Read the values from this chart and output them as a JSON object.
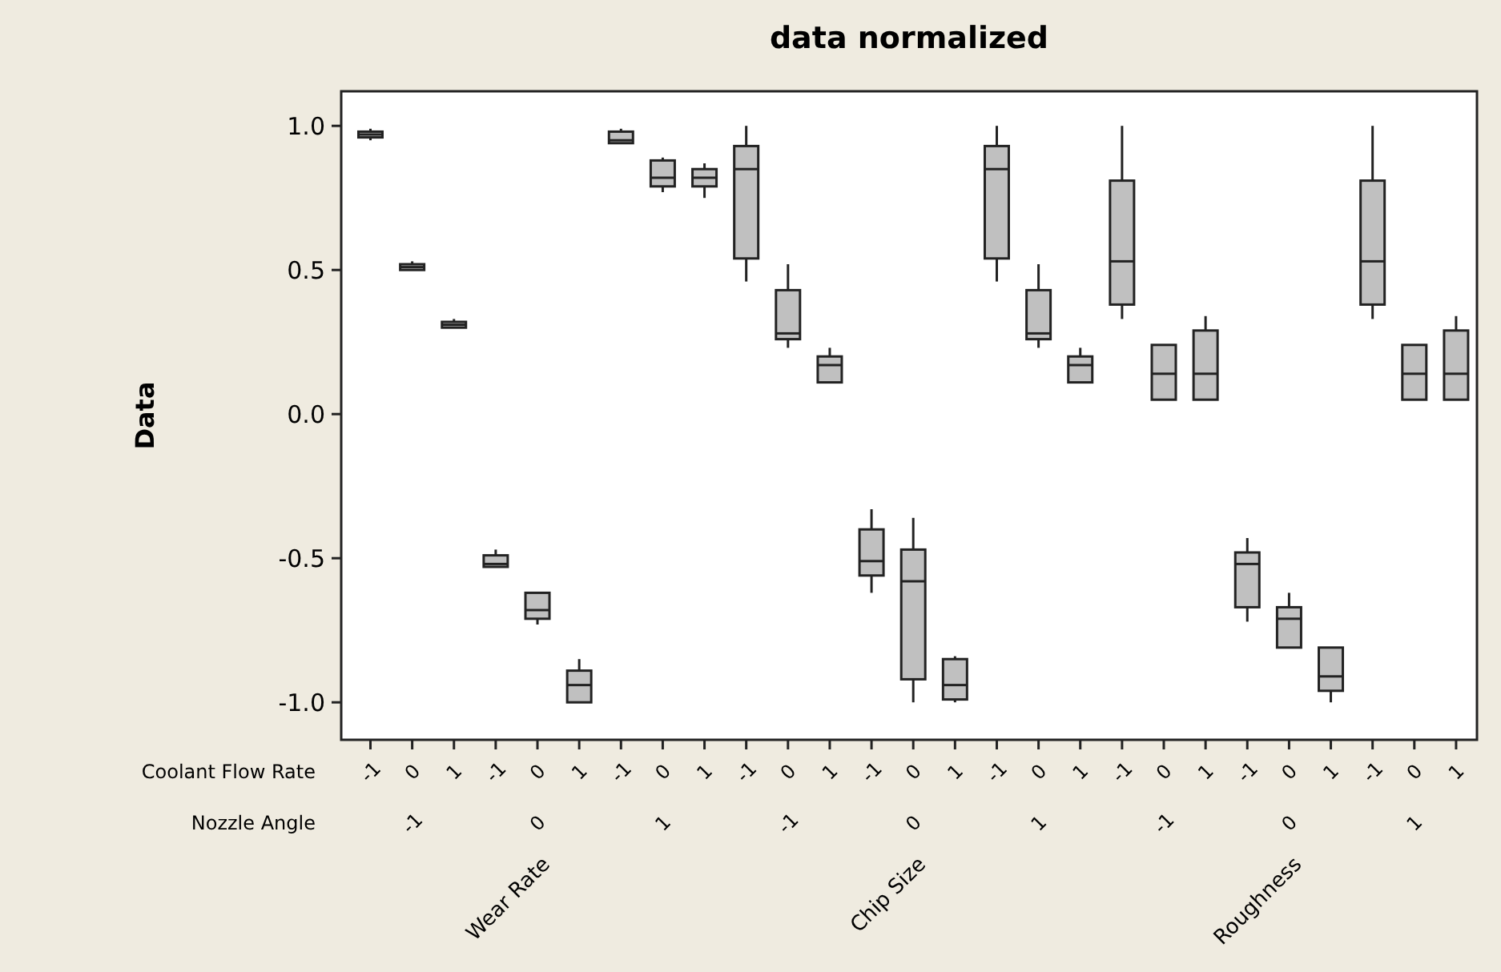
{
  "chart_data": {
    "type": "box",
    "title": "data normalized",
    "ylabel": "Data",
    "categories": [
      "-1",
      "0",
      "1",
      "-1",
      "0",
      "1",
      "-1",
      "0",
      "1",
      "-1",
      "0",
      "1",
      "-1",
      "0",
      "1",
      "-1",
      "0",
      "1",
      "-1",
      "0",
      "1",
      "-1",
      "0",
      "1",
      "-1",
      "0",
      "1"
    ],
    "color": "#c0c0c0",
    "boxes": [
      {
        "low": 0.95,
        "q1": 0.96,
        "median": 0.97,
        "q3": 0.98,
        "high": 0.99
      },
      {
        "low": 0.5,
        "q1": 0.5,
        "median": 0.51,
        "q3": 0.52,
        "high": 0.53
      },
      {
        "low": 0.3,
        "q1": 0.3,
        "median": 0.31,
        "q3": 0.32,
        "high": 0.33
      },
      {
        "low": -0.53,
        "q1": -0.53,
        "median": -0.52,
        "q3": -0.49,
        "high": -0.47
      },
      {
        "low": -0.73,
        "q1": -0.71,
        "median": -0.68,
        "q3": -0.62,
        "high": -0.62
      },
      {
        "low": -1.0,
        "q1": -1.0,
        "median": -0.94,
        "q3": -0.89,
        "high": -0.85
      },
      {
        "low": 0.94,
        "q1": 0.94,
        "median": 0.95,
        "q3": 0.98,
        "high": 0.99
      },
      {
        "low": 0.77,
        "q1": 0.79,
        "median": 0.82,
        "q3": 0.88,
        "high": 0.89
      },
      {
        "low": 0.75,
        "q1": 0.79,
        "median": 0.82,
        "q3": 0.85,
        "high": 0.87
      },
      {
        "low": 0.46,
        "q1": 0.54,
        "median": 0.85,
        "q3": 0.93,
        "high": 1.0
      },
      {
        "low": 0.23,
        "q1": 0.26,
        "median": 0.28,
        "q3": 0.43,
        "high": 0.52
      },
      {
        "low": 0.11,
        "q1": 0.11,
        "median": 0.17,
        "q3": 0.2,
        "high": 0.23
      },
      {
        "low": -0.62,
        "q1": -0.56,
        "median": -0.51,
        "q3": -0.4,
        "high": -0.33
      },
      {
        "low": -1.0,
        "q1": -0.92,
        "median": -0.58,
        "q3": -0.47,
        "high": -0.36
      },
      {
        "low": -1.0,
        "q1": -0.99,
        "median": -0.94,
        "q3": -0.85,
        "high": -0.84
      },
      {
        "low": 0.46,
        "q1": 0.54,
        "median": 0.85,
        "q3": 0.93,
        "high": 1.0
      },
      {
        "low": 0.23,
        "q1": 0.26,
        "median": 0.28,
        "q3": 0.43,
        "high": 0.52
      },
      {
        "low": 0.11,
        "q1": 0.11,
        "median": 0.17,
        "q3": 0.2,
        "high": 0.23
      },
      {
        "low": 0.33,
        "q1": 0.38,
        "median": 0.53,
        "q3": 0.81,
        "high": 1.0
      },
      {
        "low": 0.05,
        "q1": 0.05,
        "median": 0.14,
        "q3": 0.24,
        "high": 0.24
      },
      {
        "low": 0.05,
        "q1": 0.05,
        "median": 0.14,
        "q3": 0.29,
        "high": 0.34
      },
      {
        "low": -0.72,
        "q1": -0.67,
        "median": -0.52,
        "q3": -0.48,
        "high": -0.43
      },
      {
        "low": -0.81,
        "q1": -0.81,
        "median": -0.71,
        "q3": -0.67,
        "high": -0.62
      },
      {
        "low": -1.0,
        "q1": -0.96,
        "median": -0.91,
        "q3": -0.81,
        "high": -0.81
      },
      {
        "low": 0.33,
        "q1": 0.38,
        "median": 0.53,
        "q3": 0.81,
        "high": 1.0
      },
      {
        "low": 0.05,
        "q1": 0.05,
        "median": 0.14,
        "q3": 0.24,
        "high": 0.24
      },
      {
        "low": 0.05,
        "q1": 0.05,
        "median": 0.14,
        "q3": 0.29,
        "high": 0.34
      }
    ],
    "ylim": [
      -1.13,
      1.12
    ],
    "yticks": [
      {
        "value": -1,
        "label": "-1.0"
      },
      {
        "value": -0.5,
        "label": "-0.5"
      },
      {
        "value": 0,
        "label": "0.0"
      },
      {
        "value": 0.5,
        "label": "0.5"
      },
      {
        "value": 1,
        "label": "1.0"
      }
    ],
    "grid": false,
    "annotations": [
      "Coolant Flow Rate",
      "Nozzle Angle",
      "-1",
      "0",
      "1",
      "-1",
      "0",
      "1",
      "-1",
      "0",
      "1",
      "Wear Rate",
      "Chip Size",
      "Roughness"
    ]
  }
}
